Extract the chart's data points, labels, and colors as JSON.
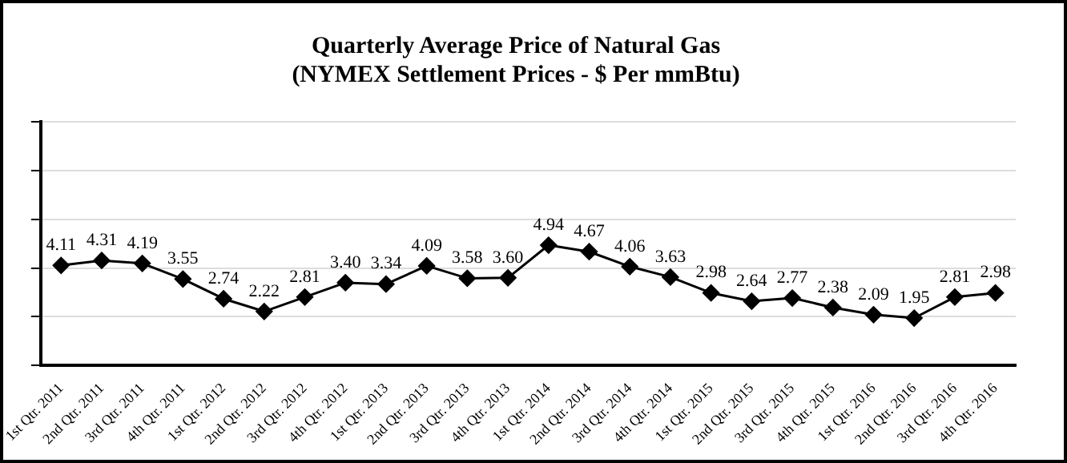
{
  "chart_data": {
    "type": "line",
    "title": [
      "Quarterly Average Price of Natural Gas",
      "(NYMEX Settlement Prices - $ Per mmBtu)"
    ],
    "categories": [
      "1st Qtr. 2011",
      "2nd Qtr. 2011",
      "3rd Qtr. 2011",
      "4th Qtr. 2011",
      "1st Qtr. 2012",
      "2nd Qtr. 2012",
      "3rd Qtr. 2012",
      "4th Qtr. 2012",
      "1st Qtr. 2013",
      "2nd Qtr. 2013",
      "3rd Qtr. 2013",
      "4th Qtr. 2013",
      "1st Qtr. 2014",
      "2nd Qtr. 2014",
      "3rd Qtr. 2014",
      "4th Qtr. 2014",
      "1st Qtr. 2015",
      "2nd Qtr. 2015",
      "3rd Qtr. 2015",
      "4th Qtr. 2015",
      "1st Qtr. 2016",
      "2nd Qtr. 2016",
      "3rd Qtr. 2016",
      "4th Qtr. 2016"
    ],
    "series": [
      {
        "color": "#000000",
        "values": [
          4.11,
          4.31,
          4.19,
          3.55,
          2.74,
          2.22,
          2.81,
          3.4,
          3.34,
          4.09,
          3.58,
          3.6,
          4.94,
          4.67,
          4.06,
          3.63,
          2.98,
          2.64,
          2.77,
          2.38,
          2.09,
          1.95,
          2.81,
          2.98
        ],
        "value_labels": [
          "4.11",
          "4.31",
          "4.19",
          "3.55",
          "2.74",
          "2.22",
          "2.81",
          "3.40",
          "3.34",
          "4.09",
          "3.58",
          "3.60",
          "4.94",
          "4.67",
          "4.06",
          "3.63",
          "2.98",
          "2.64",
          "2.77",
          "2.38",
          "2.09",
          "1.95",
          "2.81",
          "2.98"
        ]
      }
    ],
    "ylim": [
      0,
      10
    ],
    "yticks": [
      {
        "value": 0,
        "label": null
      },
      {
        "value": 2,
        "label": null
      },
      {
        "value": 4,
        "label": null
      },
      {
        "value": 6,
        "label": null
      },
      {
        "value": 8,
        "label": null
      },
      {
        "value": 10,
        "label": null
      }
    ],
    "tick_labels": "x",
    "grid": "y",
    "marker": "diamond",
    "line_style": "solid",
    "legend": false
  }
}
